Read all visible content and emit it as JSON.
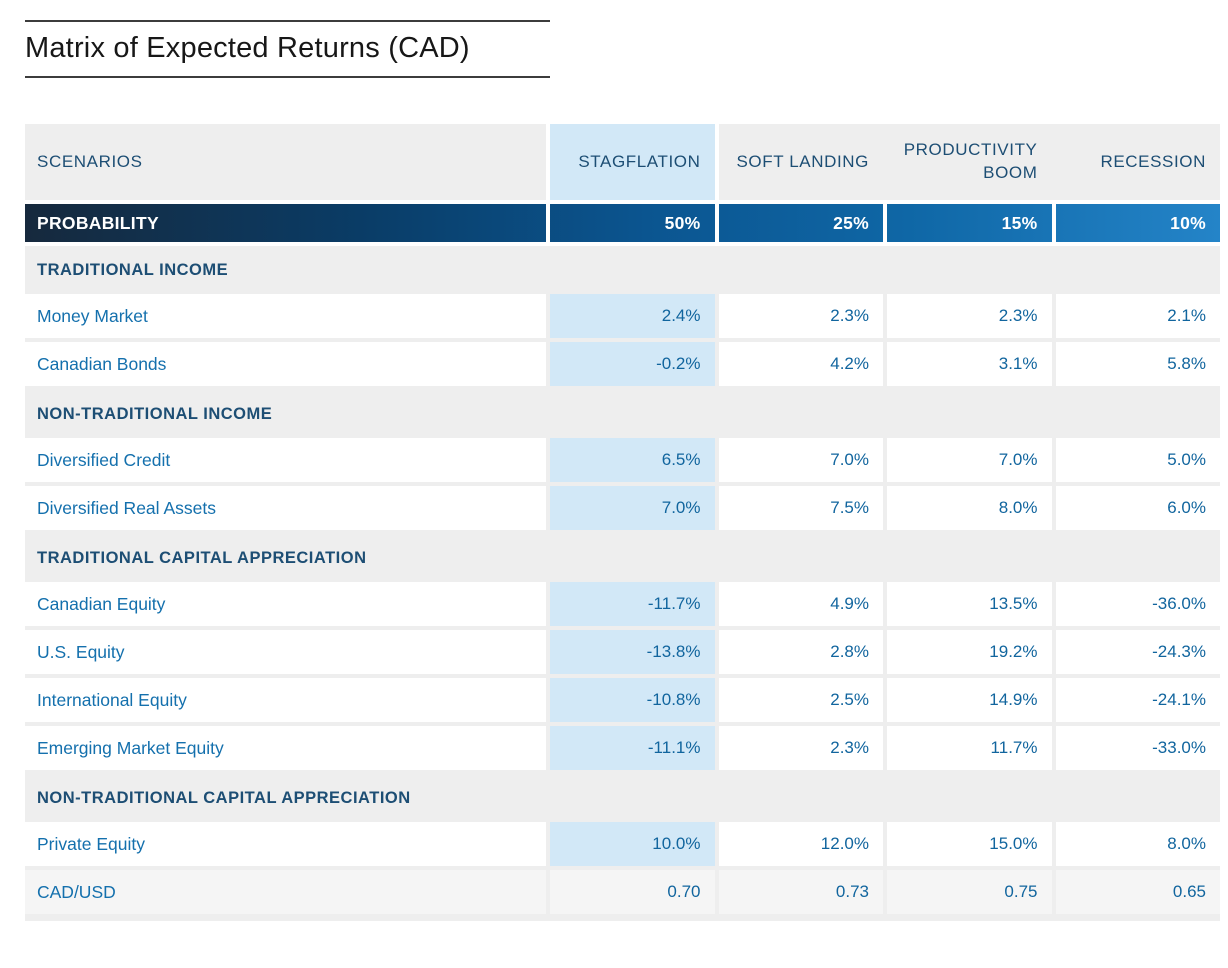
{
  "chart_data": {
    "type": "table",
    "title": "Matrix of Expected Returns (CAD)",
    "header": {
      "scenarios_label": "SCENARIOS",
      "columns": [
        "STAGFLATION",
        "SOFT LANDING",
        "PRODUCTIVITY BOOM",
        "RECESSION"
      ]
    },
    "highlighted_column": "STAGFLATION",
    "probability": {
      "label": "PROBABILITY",
      "values": [
        "50%",
        "25%",
        "15%",
        "10%"
      ]
    },
    "sections": [
      {
        "label": "TRADITIONAL INCOME",
        "rows": [
          {
            "label": "Money Market",
            "values": [
              "2.4%",
              "2.3%",
              "2.3%",
              "2.1%"
            ]
          },
          {
            "label": "Canadian Bonds",
            "values": [
              "-0.2%",
              "4.2%",
              "3.1%",
              "5.8%"
            ]
          }
        ]
      },
      {
        "label": "NON-TRADITIONAL INCOME",
        "rows": [
          {
            "label": "Diversified Credit",
            "values": [
              "6.5%",
              "7.0%",
              "7.0%",
              "5.0%"
            ]
          },
          {
            "label": "Diversified Real Assets",
            "values": [
              "7.0%",
              "7.5%",
              "8.0%",
              "6.0%"
            ]
          }
        ]
      },
      {
        "label": "TRADITIONAL CAPITAL APPRECIATION",
        "rows": [
          {
            "label": "Canadian Equity",
            "values": [
              "-11.7%",
              "4.9%",
              "13.5%",
              "-36.0%"
            ]
          },
          {
            "label": "U.S. Equity",
            "values": [
              "-13.8%",
              "2.8%",
              "19.2%",
              "-24.3%"
            ]
          },
          {
            "label": "International Equity",
            "values": [
              "-10.8%",
              "2.5%",
              "14.9%",
              "-24.1%"
            ]
          },
          {
            "label": "Emerging Market Equity",
            "values": [
              "-11.1%",
              "2.3%",
              "11.7%",
              "-33.0%"
            ]
          }
        ]
      },
      {
        "label": "NON-TRADITIONAL CAPITAL APPRECIATION",
        "rows": [
          {
            "label": "Private Equity",
            "values": [
              "10.0%",
              "12.0%",
              "15.0%",
              "8.0%"
            ]
          },
          {
            "label": "CAD/USD",
            "values": [
              "0.70",
              "0.73",
              "0.75",
              "0.65"
            ]
          }
        ]
      }
    ],
    "colors": {
      "header_navy_text": "#1d4e74",
      "row_label_blue_text": "#1470ad",
      "value_blue_text": "#11659e",
      "stagflation_highlight": "#d2e8f7",
      "probability_gradient_start": "#16293d",
      "probability_gradient_end": "#2484c8",
      "table_background": "#eeeeee",
      "muted_cell_background": "#f5f5f5",
      "title_text": "#171717"
    }
  }
}
